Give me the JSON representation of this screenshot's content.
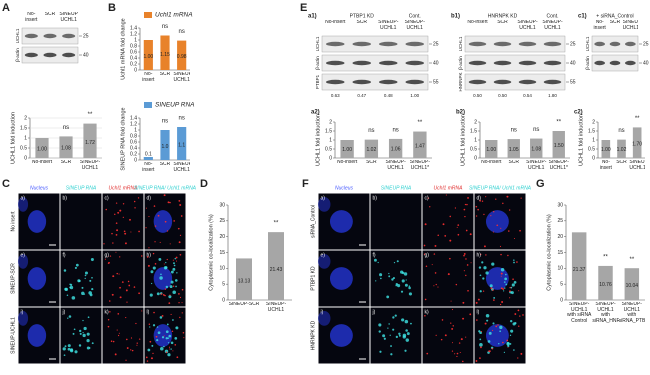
{
  "panels": {
    "A": {
      "label": "A",
      "blot": {
        "lanes": [
          "No-insert",
          "SCR",
          "SINEUP-UCHL1"
        ],
        "rows": [
          "UCHL1",
          "β-actin"
        ],
        "markers": [
          "25",
          "40"
        ]
      },
      "chart": {
        "ylabel": "UCHL1 fold induction",
        "categories": [
          "No-insert",
          "SCR",
          "SINEUP-UCHL1"
        ],
        "values": [
          1.0,
          1.08,
          1.72
        ],
        "value_labels": [
          "1.00",
          "1.08",
          "1.72"
        ],
        "annotations": [
          null,
          "ns",
          "**"
        ],
        "color": "#a6a6a6",
        "ylim": [
          0,
          2
        ],
        "yticks": [
          0,
          0.5,
          1,
          1.5,
          2
        ],
        "grid": true
      }
    },
    "B": {
      "label": "B",
      "top": {
        "legend": "Uchl1 mRNA",
        "ylabel": "Uchl1 mRNA fold change",
        "categories": [
          "No-insert",
          "SCR",
          "SINEUP-UCHL1"
        ],
        "values": [
          1.0,
          1.15,
          0.98
        ],
        "value_labels": [
          "1.00",
          "1.15",
          "0.98"
        ],
        "annotations": [
          null,
          "ns",
          "ns"
        ],
        "color": "#e8822a",
        "ylim": [
          0,
          1.4
        ],
        "yticks": [
          0,
          0.2,
          0.4,
          0.6,
          0.8,
          1,
          1.2,
          1.4
        ],
        "grid": false
      },
      "bottom": {
        "legend": "SINEUP RNA",
        "ylabel": "SINEUP RNA fold change",
        "categories": [
          "No-insert",
          "SCR",
          "SINEUP-UCHL1"
        ],
        "values": [
          0.1,
          1.0,
          1.1
        ],
        "value_labels": [
          "0.1",
          "1.0",
          "1.1"
        ],
        "annotations": [
          null,
          "ns",
          "ns"
        ],
        "color": "#5b9bd5",
        "ylim": [
          0,
          1.4
        ],
        "yticks": [
          0,
          0.2,
          0.4,
          0.6,
          0.8,
          1,
          1.2,
          1.4
        ],
        "grid": false
      }
    },
    "E": {
      "label": "E",
      "a1": {
        "tag": "a1)",
        "title": "PTBP1 KD",
        "extra": "Cont.",
        "lanes": [
          "No-insert",
          "SCR",
          "SINEUP-UCHL1",
          "SINEUP-UCHL1"
        ],
        "rows": [
          "UCHL1",
          "β-actin",
          "PTBP1"
        ],
        "markers": [
          "25",
          "40",
          "55"
        ],
        "quant": [
          "0.63",
          "0.47",
          "0.48",
          "1.00"
        ]
      },
      "b1": {
        "tag": "b1)",
        "title": "HNRNPK KD",
        "extra": "Cont.",
        "lanes": [
          "No-insert",
          "SCR",
          "SINEUP-UCHL1",
          "SINEUP-UCHL1"
        ],
        "rows": [
          "UCHL1",
          "β-actin",
          "HNRNPK"
        ],
        "markers": [
          "25",
          "40",
          "55"
        ],
        "quant": [
          "0.50",
          "0.50",
          "0.54",
          "1.80"
        ]
      },
      "c1": {
        "tag": "c1)",
        "title": "+ siRNA_Control",
        "lanes": [
          "No-insert",
          "SCR",
          "SINEUP-UCHL1"
        ],
        "rows": [
          "UCHL1",
          "β-actin"
        ],
        "markers": [
          "25",
          "40"
        ]
      },
      "a2": {
        "tag": "a2)",
        "ylabel": "UCHL1 fold induction",
        "categories": [
          "No-insert",
          "SCR",
          "SINEUP-UCHL1",
          "SINEUP-UCHL1*"
        ],
        "values": [
          1.0,
          1.02,
          1.06,
          1.47
        ],
        "value_labels": [
          "1.00",
          "1.02",
          "1.06",
          "1.47"
        ],
        "annotations": [
          null,
          "ns",
          "ns",
          "**"
        ],
        "color": "#a6a6a6",
        "ylim": [
          0,
          2
        ],
        "yticks": [
          0,
          0.5,
          1,
          1.5,
          2
        ],
        "grid": false
      },
      "b2": {
        "tag": "b2)",
        "ylabel": "UCHL1 fold induction",
        "categories": [
          "No-insert",
          "SCR",
          "SINEUP-UCHL1",
          "SINEUP-UCHL1*"
        ],
        "values": [
          1.0,
          1.05,
          1.08,
          1.5
        ],
        "value_labels": [
          "1.00",
          "1.05",
          "1.08",
          "1.50"
        ],
        "annotations": [
          null,
          "ns",
          "ns",
          "**"
        ],
        "color": "#a6a6a6",
        "ylim": [
          0,
          2
        ],
        "yticks": [
          0,
          0.5,
          1,
          1.5,
          2
        ],
        "grid": false
      },
      "c2": {
        "tag": "c2)",
        "ylabel": "UCHL1 fold induction",
        "categories": [
          "No-insert",
          "SCR",
          "SINEUP-UCHL1*"
        ],
        "values": [
          1.0,
          1.02,
          1.7
        ],
        "value_labels": [
          "1.00",
          "1.02",
          "1.70"
        ],
        "annotations": [
          null,
          "ns",
          "**"
        ],
        "color": "#a6a6a6",
        "ylim": [
          0,
          2
        ],
        "yticks": [
          0,
          0.5,
          1,
          1.5,
          2
        ],
        "grid": false
      }
    },
    "C": {
      "label": "C",
      "headers": [
        "Nucleus",
        "SINEUP RNA",
        "Uchl1 mRNA",
        "SINEUP RNA/ Uchl1 mRNA"
      ],
      "rows": [
        "No insert",
        "SINEUP-SCR",
        "SINEUP-UCHL1"
      ],
      "cells": [
        "a)",
        "b)",
        "c)",
        "d)",
        "e)",
        "f)",
        "g)",
        "h)",
        "i)",
        "j)",
        "k)",
        "l)"
      ]
    },
    "D": {
      "label": "D",
      "chart": {
        "ylabel": "Cytoplasmic co-localization (%)",
        "categories": [
          "SINEUP-SCR",
          "SINEUP-UCHL1"
        ],
        "values": [
          13.13,
          21.43
        ],
        "annotations": [
          null,
          "**"
        ],
        "color": "#a6a6a6",
        "ylim": [
          0,
          30
        ],
        "yticks": [
          0,
          5,
          10,
          15,
          20,
          25,
          30
        ],
        "grid": false
      }
    },
    "F": {
      "label": "F",
      "headers": [
        "Nucleus",
        "SINEUP RNA",
        "Uchl1 mRNA",
        "SINEUP RNA/ Uchl1 mRNA"
      ],
      "rows": [
        "siRNA_Control",
        "PTBP1 KD",
        "HNRNPK KD"
      ],
      "cells": [
        "a)",
        "b)",
        "c)",
        "d)",
        "e)",
        "f)",
        "g)",
        "h)",
        "i)",
        "j)",
        "k)",
        "l)"
      ]
    },
    "G": {
      "label": "G",
      "chart": {
        "ylabel": "Cytoplasmic co-localization (%)",
        "categories": [
          "SINEUP-UCHL1 with siRNA Control",
          "SINEUP-UCHL1 with siRNA_HNRNPK",
          "SINEUP-UCHL1 with siRNA_PTBP1"
        ],
        "values": [
          21.37,
          10.76,
          10.04
        ],
        "annotations": [
          null,
          "**",
          "**"
        ],
        "color": "#a6a6a6",
        "ylim": [
          0,
          30
        ],
        "yticks": [
          0,
          5,
          10,
          15,
          20,
          25,
          30
        ],
        "grid": false
      }
    }
  }
}
